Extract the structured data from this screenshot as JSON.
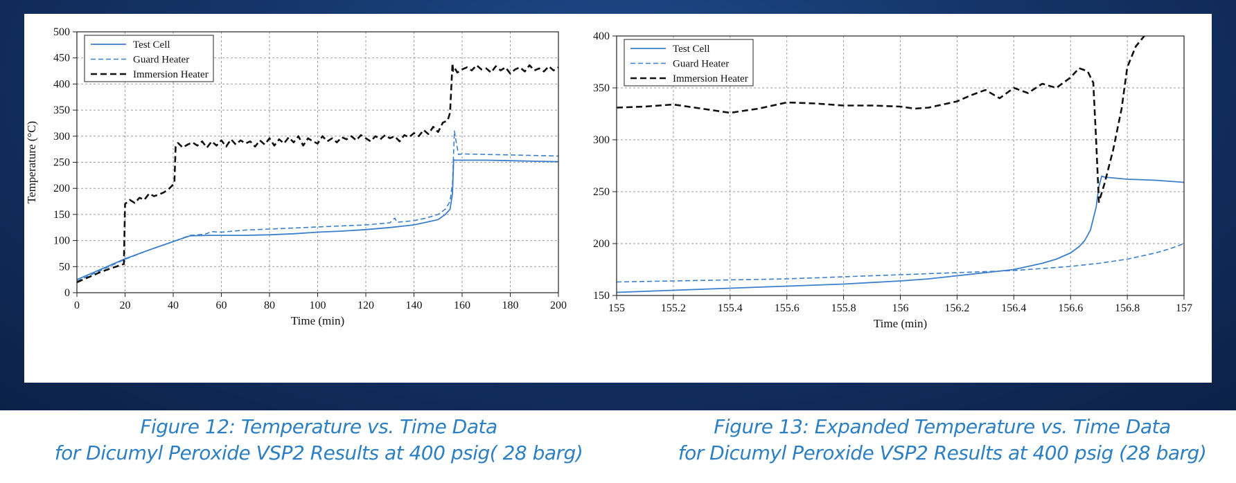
{
  "colors": {
    "test_cell": "#3b7fcc",
    "guard_heater": "#3b7fcc",
    "immersion_heater": "#111111",
    "caption": "#2c7fc3",
    "background": "#143468"
  },
  "captions": [
    {
      "line1": "Figure 12:  Temperature vs. Time Data",
      "line2": "for Dicumyl Peroxide VSP2 Results at 400 psig( 28 barg)"
    },
    {
      "line1": "Figure 13:  Expanded Temperature vs. Time Data",
      "line2": "for Dicumyl Peroxide VSP2 Results at 400 psig (28 barg)"
    }
  ],
  "chart_data": [
    {
      "type": "line",
      "xlabel": "Time (min)",
      "ylabel": "Temperature (°C)",
      "xlim": [
        0,
        200
      ],
      "ylim": [
        0,
        500
      ],
      "xticks": [
        0,
        20,
        40,
        60,
        80,
        100,
        120,
        140,
        160,
        180,
        200
      ],
      "yticks": [
        0,
        50,
        100,
        150,
        200,
        250,
        300,
        350,
        400,
        450,
        500
      ],
      "xtick_labels": [
        "0",
        "20",
        "40",
        "60",
        "80",
        "100",
        "120",
        "140",
        "160",
        "180",
        "200"
      ],
      "ytick_labels": [
        "0",
        "50",
        "100",
        "150",
        "200",
        "250",
        "300",
        "350",
        "400",
        "450",
        "500"
      ],
      "grid": true,
      "legend_position": "top-left",
      "series": [
        {
          "name": "Test Cell",
          "style": "solid",
          "x": [
            0,
            10,
            20,
            30,
            40,
            47,
            55,
            60,
            70,
            80,
            90,
            100,
            110,
            120,
            130,
            140,
            145,
            150,
            153,
            155,
            156,
            156.5,
            157,
            158,
            160,
            170,
            180,
            190,
            200
          ],
          "y": [
            25,
            45,
            65,
            82,
            98,
            109,
            110,
            110,
            110,
            111,
            113,
            116,
            118,
            121,
            125,
            130,
            135,
            140,
            150,
            160,
            190,
            255,
            254,
            254,
            254,
            254,
            253,
            252,
            251
          ]
        },
        {
          "name": "Guard Heater",
          "style": "dashed",
          "x": [
            0,
            10,
            20,
            30,
            40,
            47,
            53,
            56,
            60,
            70,
            80,
            90,
            100,
            110,
            120,
            130,
            132,
            133,
            140,
            145,
            150,
            153,
            155,
            156,
            156.8,
            157.5,
            158.5,
            160,
            170,
            180,
            190,
            200
          ],
          "y": [
            22,
            43,
            64,
            82,
            98,
            110,
            112,
            117,
            116,
            120,
            122,
            124,
            126,
            128,
            130,
            134,
            143,
            135,
            138,
            143,
            150,
            160,
            175,
            210,
            310,
            290,
            265,
            266,
            265,
            264,
            263,
            262
          ]
        },
        {
          "name": "Immersion Heater",
          "style": "dashed",
          "x": [
            0,
            5,
            10,
            15,
            19.5,
            20,
            22,
            24,
            26,
            28,
            30,
            32,
            34,
            36,
            38,
            39.5,
            40.5,
            41,
            42,
            44,
            46,
            48,
            50,
            52,
            54,
            56,
            58,
            60,
            62,
            64,
            66,
            68,
            70,
            72,
            74,
            76,
            78,
            80,
            82,
            84,
            86,
            88,
            90,
            92,
            94,
            96,
            98,
            100,
            102,
            104,
            106,
            108,
            110,
            112,
            114,
            116,
            118,
            120,
            122,
            124,
            126,
            128,
            130,
            132,
            134,
            136,
            138,
            140,
            142,
            144,
            146,
            148,
            150,
            152,
            154,
            155,
            156,
            156.3,
            157,
            158,
            160,
            162,
            164,
            166,
            168,
            170,
            172,
            174,
            176,
            178,
            180,
            182,
            184,
            186,
            188,
            190,
            192,
            194,
            196,
            198,
            200
          ],
          "y": [
            20,
            30,
            40,
            48,
            55,
            170,
            178,
            172,
            182,
            178,
            190,
            185,
            188,
            192,
            198,
            205,
            210,
            280,
            287,
            278,
            284,
            288,
            282,
            290,
            278,
            290,
            282,
            292,
            280,
            294,
            284,
            292,
            286,
            290,
            280,
            292,
            284,
            296,
            282,
            294,
            286,
            298,
            288,
            300,
            282,
            296,
            290,
            286,
            300,
            290,
            296,
            288,
            298,
            294,
            300,
            292,
            302,
            296,
            290,
            300,
            294,
            302,
            296,
            300,
            290,
            302,
            298,
            306,
            300,
            312,
            304,
            318,
            308,
            326,
            330,
            345,
            440,
            425,
            430,
            422,
            428,
            432,
            426,
            436,
            428,
            430,
            422,
            434,
            426,
            432,
            420,
            428,
            432,
            424,
            436,
            426,
            430,
            424,
            434,
            426,
            432
          ]
        }
      ]
    },
    {
      "type": "line",
      "xlabel": "Time (min)",
      "ylabel": "Temperature (°C)",
      "xlim": [
        155,
        157
      ],
      "ylim": [
        150,
        400
      ],
      "xticks": [
        155,
        155.2,
        155.4,
        155.6,
        155.8,
        156,
        156.2,
        156.4,
        156.6,
        156.8,
        157
      ],
      "yticks": [
        150,
        200,
        250,
        300,
        350,
        400
      ],
      "xtick_labels": [
        "155",
        "155.2",
        "155.4",
        "155.6",
        "155.8",
        "156",
        "156.2",
        "156.4",
        "156.6",
        "156.8",
        "157"
      ],
      "ytick_labels": [
        "150",
        "200",
        "250",
        "300",
        "350",
        "400"
      ],
      "grid": true,
      "legend_position": "top-left",
      "series": [
        {
          "name": "Test Cell",
          "style": "solid",
          "x": [
            155,
            155.2,
            155.4,
            155.6,
            155.8,
            156,
            156.1,
            156.2,
            156.3,
            156.4,
            156.45,
            156.5,
            156.55,
            156.6,
            156.63,
            156.65,
            156.67,
            156.69,
            156.7,
            156.71,
            156.72,
            156.8,
            156.9,
            157
          ],
          "y": [
            153,
            155,
            157,
            159,
            161,
            164,
            166,
            169,
            172,
            175,
            178,
            181,
            185,
            191,
            197,
            203,
            213,
            235,
            255,
            265,
            264,
            262,
            261,
            259
          ]
        },
        {
          "name": "Guard Heater",
          "style": "dashed",
          "x": [
            155,
            155.2,
            155.4,
            155.6,
            155.8,
            156,
            156.2,
            156.4,
            156.5,
            156.6,
            156.7,
            156.8,
            156.85,
            156.9,
            156.95,
            157
          ],
          "y": [
            163,
            164,
            165,
            166,
            168,
            170,
            172,
            174,
            176,
            178,
            181,
            185,
            188,
            191,
            195,
            200
          ]
        },
        {
          "name": "Immersion Heater",
          "style": "dashed",
          "x": [
            155,
            155.1,
            155.2,
            155.3,
            155.4,
            155.5,
            155.6,
            155.7,
            155.8,
            155.9,
            156,
            156.05,
            156.1,
            156.2,
            156.25,
            156.3,
            156.35,
            156.4,
            156.45,
            156.5,
            156.55,
            156.6,
            156.63,
            156.66,
            156.68,
            156.69,
            156.7,
            156.72,
            156.75,
            156.78,
            156.8,
            156.83,
            156.86
          ],
          "y": [
            331,
            332,
            334,
            330,
            326,
            330,
            336,
            335,
            333,
            333,
            332,
            330,
            331,
            337,
            343,
            348,
            340,
            350,
            345,
            354,
            350,
            360,
            369,
            366,
            355,
            300,
            240,
            258,
            290,
            330,
            370,
            390,
            400
          ]
        }
      ]
    }
  ]
}
